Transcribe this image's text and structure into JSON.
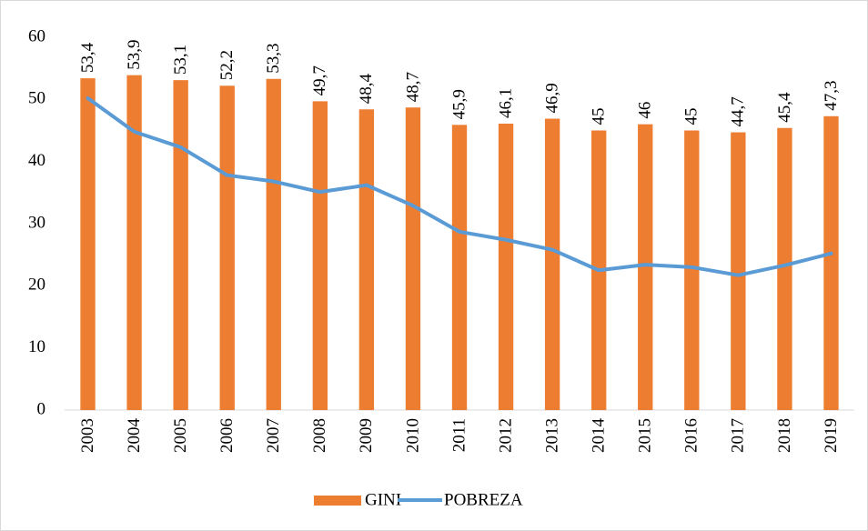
{
  "chart_data": {
    "type": "bar",
    "categories": [
      "2003",
      "2004",
      "2005",
      "2006",
      "2007",
      "2008",
      "2009",
      "2010",
      "2011",
      "2012",
      "2013",
      "2014",
      "2015",
      "2016",
      "2017",
      "2018",
      "2019"
    ],
    "series": [
      {
        "name": "GINI",
        "type": "bar",
        "color": "#ed7d31",
        "values": [
          53.4,
          53.9,
          53.1,
          52.2,
          53.3,
          49.7,
          48.4,
          48.7,
          45.9,
          46.1,
          46.9,
          45,
          46,
          45,
          44.7,
          45.4,
          47.3
        ],
        "value_labels": [
          "53,4",
          "53,9",
          "53,1",
          "52,2",
          "53,3",
          "49,7",
          "48,4",
          "48,7",
          "45,9",
          "46,1",
          "46,9",
          "45",
          "46",
          "45",
          "44,7",
          "45,4",
          "47,3"
        ]
      },
      {
        "name": "POBREZA",
        "type": "line",
        "color": "#5b9bd5",
        "values": [
          50.2,
          44.8,
          42.3,
          37.8,
          36.8,
          35.1,
          36.2,
          32.9,
          28.7,
          27.4,
          25.8,
          22.5,
          23.4,
          23.0,
          21.7,
          23.3,
          25.2
        ]
      }
    ],
    "ylim": [
      0,
      60
    ],
    "yticks": [
      0,
      10,
      20,
      30,
      40,
      50,
      60
    ],
    "grid": false,
    "legend": "bottom"
  }
}
